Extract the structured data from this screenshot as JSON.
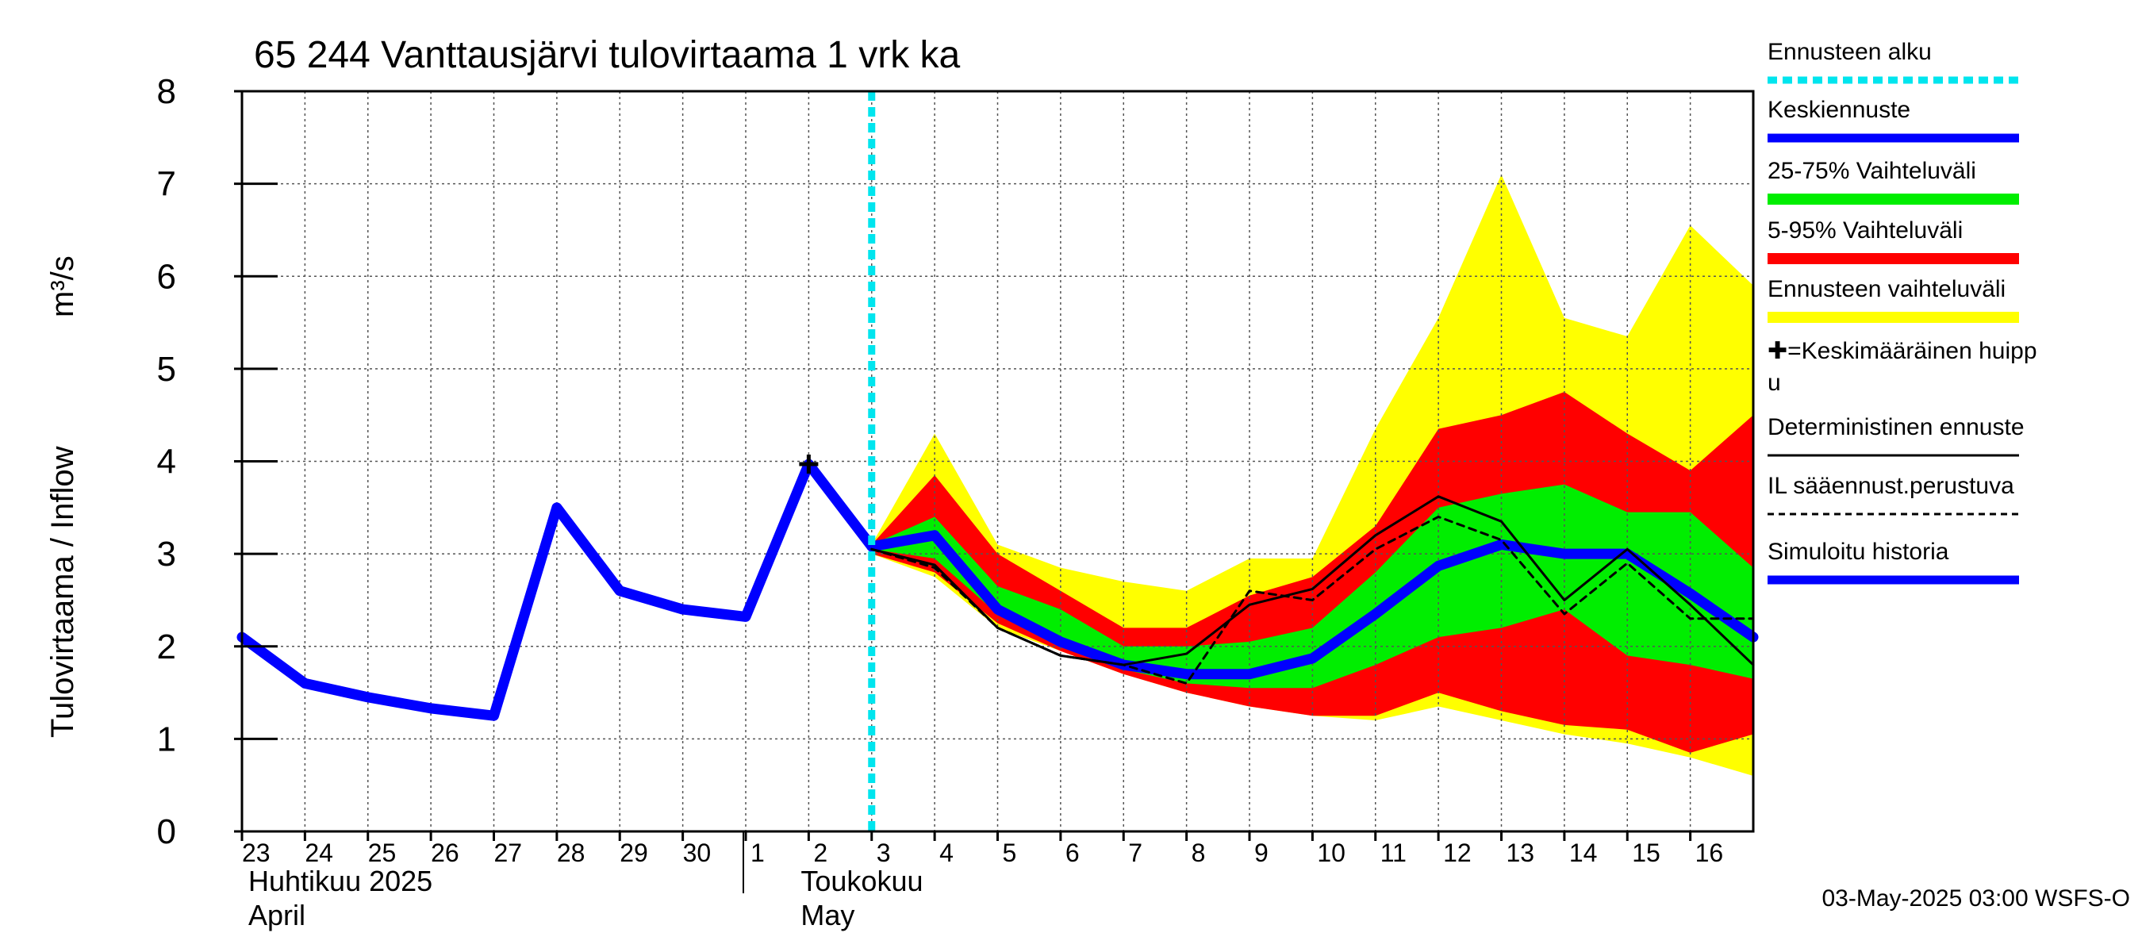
{
  "chart_data": {
    "type": "area",
    "title": "65 244 Vanttausjärvi tulovirtaama 1 vrk ka",
    "ylabel": "Tulovirtaama / Inflow",
    "yunit": "m³/s",
    "ylim": [
      0,
      8
    ],
    "yticks": [
      "0",
      "1",
      "2",
      "3",
      "4",
      "5",
      "6",
      "7",
      "8"
    ],
    "grid": true,
    "legend_position": "right",
    "x_range": [
      "2025-04-23",
      "2025-05-16T24"
    ],
    "x_tick_labels": [
      {
        "date": "2025-04-23",
        "label": "23"
      },
      {
        "date": "2025-04-24",
        "label": "24"
      },
      {
        "date": "2025-04-25",
        "label": "25"
      },
      {
        "date": "2025-04-26",
        "label": "26"
      },
      {
        "date": "2025-04-27",
        "label": "27"
      },
      {
        "date": "2025-04-28",
        "label": "28"
      },
      {
        "date": "2025-04-29",
        "label": "29"
      },
      {
        "date": "2025-04-30",
        "label": "30"
      },
      {
        "date": "2025-05-01",
        "label": "1"
      },
      {
        "date": "2025-05-02",
        "label": "2"
      },
      {
        "date": "2025-05-03",
        "label": "3"
      },
      {
        "date": "2025-05-04",
        "label": "4"
      },
      {
        "date": "2025-05-05",
        "label": "5"
      },
      {
        "date": "2025-05-06",
        "label": "6"
      },
      {
        "date": "2025-05-07",
        "label": "7"
      },
      {
        "date": "2025-05-08",
        "label": "8"
      },
      {
        "date": "2025-05-09",
        "label": "9"
      },
      {
        "date": "2025-05-10",
        "label": "10"
      },
      {
        "date": "2025-05-11",
        "label": "11"
      },
      {
        "date": "2025-05-12",
        "label": "12"
      },
      {
        "date": "2025-05-13",
        "label": "13"
      },
      {
        "date": "2025-05-14",
        "label": "14"
      },
      {
        "date": "2025-05-15",
        "label": "15"
      },
      {
        "date": "2025-05-16",
        "label": "16"
      }
    ],
    "month_labels": [
      {
        "date": "2025-04-23",
        "line1": "Huhtikuu  2025",
        "line2": "April"
      },
      {
        "date": "2025-05-02",
        "line1": "Toukokuu",
        "line2": "May"
      }
    ],
    "month_separator": "2025-05-01",
    "forecast_start": "2025-05-03",
    "peak_marker": {
      "x": "2025-05-02",
      "y": 3.97
    },
    "x": [
      "2025-04-23",
      "2025-04-24",
      "2025-04-25",
      "2025-04-26",
      "2025-04-27",
      "2025-04-28",
      "2025-04-29",
      "2025-04-30",
      "2025-05-01",
      "2025-05-02",
      "2025-05-03",
      "2025-05-04",
      "2025-05-05",
      "2025-05-06",
      "2025-05-07",
      "2025-05-08",
      "2025-05-09",
      "2025-05-10",
      "2025-05-11",
      "2025-05-12",
      "2025-05-13",
      "2025-05-14",
      "2025-05-15",
      "2025-05-16",
      "2025-05-17"
    ],
    "bands": [
      {
        "name": "Ennusteen vaihteluväli",
        "color": "#ffff00",
        "x": [
          "2025-05-03",
          "2025-05-04",
          "2025-05-05",
          "2025-05-06",
          "2025-05-07",
          "2025-05-08",
          "2025-05-09",
          "2025-05-10",
          "2025-05-11",
          "2025-05-12",
          "2025-05-13",
          "2025-05-14",
          "2025-05-15",
          "2025-05-16",
          "2025-05-17"
        ],
        "upper": [
          3.1,
          4.3,
          3.1,
          2.85,
          2.7,
          2.6,
          2.95,
          2.95,
          4.35,
          5.55,
          7.1,
          5.55,
          5.35,
          6.55,
          5.9
        ],
        "lower": [
          3.0,
          2.75,
          2.2,
          1.95,
          1.7,
          1.5,
          1.35,
          1.25,
          1.2,
          1.35,
          1.2,
          1.05,
          0.95,
          0.8,
          0.6
        ]
      },
      {
        "name": "5-95% Vaihteluväli",
        "color": "#ff0000",
        "x": [
          "2025-05-03",
          "2025-05-04",
          "2025-05-05",
          "2025-05-06",
          "2025-05-07",
          "2025-05-08",
          "2025-05-09",
          "2025-05-10",
          "2025-05-11",
          "2025-05-12",
          "2025-05-13",
          "2025-05-14",
          "2025-05-15",
          "2025-05-16",
          "2025-05-17"
        ],
        "upper": [
          3.1,
          3.85,
          3.0,
          2.6,
          2.2,
          2.2,
          2.55,
          2.75,
          3.3,
          4.35,
          4.5,
          4.75,
          4.3,
          3.9,
          4.5
        ],
        "lower": [
          3.0,
          2.8,
          2.25,
          1.95,
          1.7,
          1.5,
          1.35,
          1.25,
          1.25,
          1.5,
          1.3,
          1.15,
          1.1,
          0.85,
          1.05
        ]
      },
      {
        "name": "25-75% Vaihteluväli",
        "color": "#00ee00",
        "x": [
          "2025-05-03",
          "2025-05-04",
          "2025-05-05",
          "2025-05-06",
          "2025-05-07",
          "2025-05-08",
          "2025-05-09",
          "2025-05-10",
          "2025-05-11",
          "2025-05-12",
          "2025-05-13",
          "2025-05-14",
          "2025-05-15",
          "2025-05-16",
          "2025-05-17"
        ],
        "upper": [
          3.1,
          3.4,
          2.65,
          2.4,
          2.0,
          2.0,
          2.05,
          2.2,
          2.8,
          3.5,
          3.65,
          3.75,
          3.45,
          3.45,
          2.85
        ],
        "lower": [
          3.05,
          2.95,
          2.35,
          2.0,
          1.75,
          1.6,
          1.55,
          1.55,
          1.8,
          2.1,
          2.2,
          2.4,
          1.9,
          1.8,
          1.65
        ]
      }
    ],
    "series": [
      {
        "name": "Simuloitu historia",
        "color": "#0000ff",
        "style": "thick",
        "x": [
          "2025-04-23",
          "2025-04-24",
          "2025-04-25",
          "2025-04-26",
          "2025-04-27",
          "2025-04-28",
          "2025-04-29",
          "2025-04-30",
          "2025-05-01",
          "2025-05-02",
          "2025-05-03"
        ],
        "values": [
          2.1,
          1.6,
          1.45,
          1.33,
          1.25,
          3.5,
          2.6,
          2.4,
          2.32,
          3.97,
          3.08
        ]
      },
      {
        "name": "Keskiennuste",
        "color": "#0000ff",
        "style": "thick",
        "x": [
          "2025-05-03",
          "2025-05-04",
          "2025-05-05",
          "2025-05-06",
          "2025-05-07",
          "2025-05-08",
          "2025-05-09",
          "2025-05-10",
          "2025-05-11",
          "2025-05-12",
          "2025-05-13",
          "2025-05-14",
          "2025-05-15",
          "2025-05-16",
          "2025-05-17"
        ],
        "values": [
          3.08,
          3.2,
          2.4,
          2.05,
          1.8,
          1.7,
          1.7,
          1.87,
          2.35,
          2.87,
          3.1,
          3.0,
          3.0,
          2.57,
          2.1
        ]
      },
      {
        "name": "Deterministinen ennuste",
        "color": "#000000",
        "style": "solid",
        "x": [
          "2025-05-03",
          "2025-05-04",
          "2025-05-05",
          "2025-05-06",
          "2025-05-07",
          "2025-05-08",
          "2025-05-09",
          "2025-05-10",
          "2025-05-11",
          "2025-05-12",
          "2025-05-13",
          "2025-05-14",
          "2025-05-15",
          "2025-05-16",
          "2025-05-17"
        ],
        "values": [
          3.05,
          2.88,
          2.2,
          1.9,
          1.8,
          1.92,
          2.45,
          2.62,
          3.2,
          3.62,
          3.35,
          2.5,
          3.05,
          2.45,
          1.8
        ]
      },
      {
        "name": "IL sääennust.perustuva",
        "color": "#000000",
        "style": "dashed",
        "x": [
          "2025-05-03",
          "2025-05-04",
          "2025-05-05",
          "2025-05-06",
          "2025-05-07",
          "2025-05-08",
          "2025-05-09",
          "2025-05-10",
          "2025-05-11",
          "2025-05-12",
          "2025-05-13",
          "2025-05-14",
          "2025-05-15",
          "2025-05-16",
          "2025-05-17"
        ],
        "values": [
          3.05,
          2.85,
          2.2,
          1.9,
          1.8,
          1.6,
          2.6,
          2.5,
          3.05,
          3.4,
          3.15,
          2.35,
          2.9,
          2.3,
          2.3
        ]
      }
    ],
    "legend": [
      {
        "label": "Ennusteen alku",
        "color": "#00e5ee",
        "style": "dotted"
      },
      {
        "label": "Keskiennuste",
        "color": "#0000ff",
        "style": "thick"
      },
      {
        "label": "25-75% Vaihteluväli",
        "color": "#00ee00",
        "style": "band"
      },
      {
        "label": "5-95% Vaihteluväli",
        "color": "#ff0000",
        "style": "band"
      },
      {
        "label": "Ennusteen vaihteluväli",
        "color": "#ffff00",
        "style": "band"
      },
      {
        "label": "✚=Keskimääräinen huipp",
        "label2": "u",
        "color": "#000000",
        "style": "marker"
      },
      {
        "label": "Deterministinen ennuste",
        "color": "#000000",
        "style": "solid"
      },
      {
        "label": "IL sääennust.perustuva",
        "color": "#000000",
        "style": "dashed"
      },
      {
        "label": "Simuloitu historia",
        "color": "#0000ff",
        "style": "thick"
      }
    ],
    "footer": "03-May-2025 03:00 WSFS-O"
  }
}
